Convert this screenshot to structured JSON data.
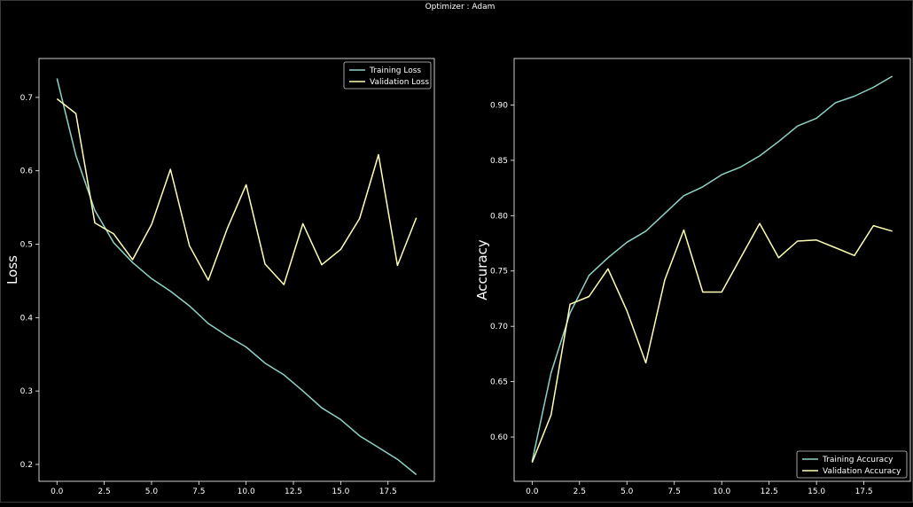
{
  "figure": {
    "title": "Optimizer : Adam",
    "background": "#000000",
    "axis_color": "#ffffff"
  },
  "chart_data": [
    {
      "type": "line",
      "title": "",
      "xlabel": "",
      "ylabel": "Loss",
      "xlim": [
        -0.95,
        19.95
      ],
      "ylim": [
        0.177,
        0.753
      ],
      "x_ticks": [
        0.0,
        2.5,
        5.0,
        7.5,
        10.0,
        12.5,
        15.0,
        17.5
      ],
      "x_tick_labels": [
        "0.0",
        "2.5",
        "5.0",
        "7.5",
        "10.0",
        "12.5",
        "15.0",
        "17.5"
      ],
      "y_ticks": [
        0.2,
        0.3,
        0.4,
        0.5,
        0.6,
        0.7
      ],
      "y_tick_labels": [
        "0.2",
        "0.3",
        "0.4",
        "0.5",
        "0.6",
        "0.7"
      ],
      "grid": false,
      "legend_position": "top-right",
      "x": [
        0,
        1,
        2,
        3,
        4,
        5,
        6,
        7,
        8,
        9,
        10,
        11,
        12,
        13,
        14,
        15,
        16,
        17,
        18,
        19
      ],
      "series": [
        {
          "name": "Training Loss",
          "color": "#8dd3c7",
          "values": [
            0.726,
            0.621,
            0.546,
            0.502,
            0.475,
            0.453,
            0.436,
            0.416,
            0.392,
            0.375,
            0.36,
            0.338,
            0.322,
            0.3,
            0.277,
            0.261,
            0.239,
            0.223,
            0.207,
            0.186
          ]
        },
        {
          "name": "Validation Loss",
          "color": "#ffffb3",
          "values": [
            0.698,
            0.678,
            0.529,
            0.514,
            0.479,
            0.527,
            0.602,
            0.498,
            0.451,
            0.521,
            0.581,
            0.473,
            0.445,
            0.528,
            0.472,
            0.493,
            0.535,
            0.622,
            0.471,
            0.536
          ]
        }
      ]
    },
    {
      "type": "line",
      "title": "",
      "xlabel": "",
      "ylabel": "Accuracy",
      "xlim": [
        -0.95,
        19.95
      ],
      "ylim": [
        0.56,
        0.942
      ],
      "x_ticks": [
        0.0,
        2.5,
        5.0,
        7.5,
        10.0,
        12.5,
        15.0,
        17.5
      ],
      "x_tick_labels": [
        "0.0",
        "2.5",
        "5.0",
        "7.5",
        "10.0",
        "12.5",
        "15.0",
        "17.5"
      ],
      "y_ticks": [
        0.6,
        0.65,
        0.7,
        0.75,
        0.8,
        0.85,
        0.9
      ],
      "y_tick_labels": [
        "0.60",
        "0.65",
        "0.70",
        "0.75",
        "0.80",
        "0.85",
        "0.90"
      ],
      "grid": false,
      "legend_position": "bottom-right",
      "x": [
        0,
        1,
        2,
        3,
        4,
        5,
        6,
        7,
        8,
        9,
        10,
        11,
        12,
        13,
        14,
        15,
        16,
        17,
        18,
        19
      ],
      "series": [
        {
          "name": "Training Accuracy",
          "color": "#8dd3c7",
          "values": [
            0.578,
            0.658,
            0.712,
            0.746,
            0.762,
            0.776,
            0.786,
            0.802,
            0.818,
            0.826,
            0.837,
            0.844,
            0.854,
            0.867,
            0.881,
            0.888,
            0.902,
            0.908,
            0.916,
            0.926
          ]
        },
        {
          "name": "Validation Accuracy",
          "color": "#ffffb3",
          "values": [
            0.577,
            0.62,
            0.72,
            0.727,
            0.752,
            0.714,
            0.667,
            0.742,
            0.787,
            0.731,
            0.731,
            0.762,
            0.793,
            0.762,
            0.777,
            0.778,
            0.771,
            0.764,
            0.791,
            0.786
          ]
        }
      ]
    }
  ]
}
